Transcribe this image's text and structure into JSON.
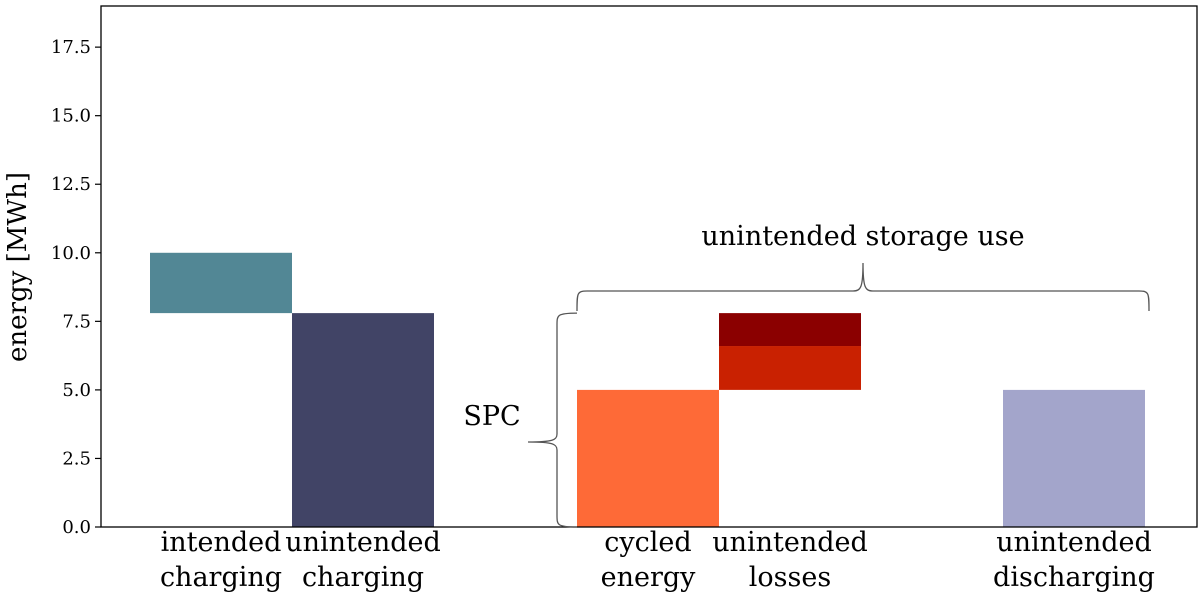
{
  "chart_data": {
    "type": "bar",
    "ylabel": "energy [MWh]",
    "ylim": [
      0,
      19
    ],
    "yticks": [
      "0.0",
      "2.5",
      "5.0",
      "7.5",
      "10.0",
      "12.5",
      "15.0",
      "17.5"
    ],
    "categories": [
      {
        "lines": [
          "intended",
          "charging"
        ]
      },
      {
        "lines": [
          "unintended",
          "charging"
        ]
      },
      {
        "lines": [
          "cycled",
          "energy"
        ]
      },
      {
        "lines": [
          "unintended",
          "losses"
        ]
      },
      {
        "lines": [
          "unintended",
          "discharging"
        ]
      }
    ],
    "bars": [
      {
        "name": "intended charging",
        "bottom": 7.8,
        "top": 10.0,
        "color": "#528795"
      },
      {
        "name": "unintended charging",
        "bottom": 0.0,
        "top": 7.8,
        "color": "#414466"
      },
      {
        "name": "cycled energy",
        "bottom": 0.0,
        "top": 5.0,
        "color": "#fe6a37"
      },
      {
        "name": "unintended losses lower",
        "bottom": 5.0,
        "top": 6.6,
        "color": "#c92101"
      },
      {
        "name": "unintended losses upper",
        "bottom": 6.6,
        "top": 7.8,
        "color": "#8b0000"
      },
      {
        "name": "unintended discharging",
        "bottom": 0.0,
        "top": 5.0,
        "color": "#a3a5cb"
      }
    ],
    "annotations": {
      "storage_use": "unintended storage use",
      "spc": "SPC"
    }
  }
}
